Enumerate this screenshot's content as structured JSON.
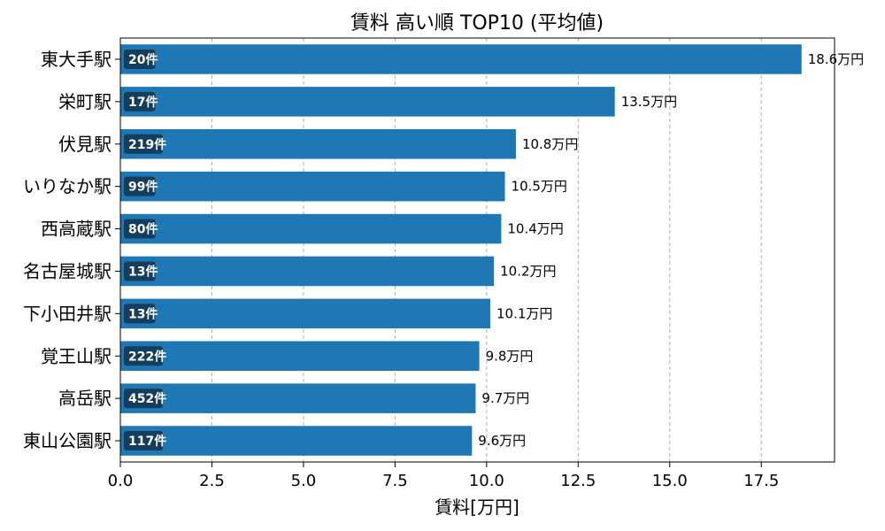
{
  "chart_data": {
    "type": "bar",
    "orientation": "horizontal",
    "title": "賃料 高い順 TOP10 (平均値)",
    "xlabel": "賃料[万円]",
    "ylabel": "",
    "xlim": [
      0,
      19.5
    ],
    "xticks": [
      "0.0",
      "2.5",
      "5.0",
      "7.5",
      "10.0",
      "12.5",
      "15.0",
      "17.5"
    ],
    "xtick_values": [
      0,
      2.5,
      5,
      7.5,
      10,
      12.5,
      15,
      17.5
    ],
    "grid": "x",
    "bar_color": "#1f77b4",
    "badge_color": "#153d5c",
    "categories": [
      "東大手駅",
      "栄町駅",
      "伏見駅",
      "いりなか駅",
      "西高蔵駅",
      "名古屋城駅",
      "下小田井駅",
      "覚王山駅",
      "高岳駅",
      "東山公園駅"
    ],
    "values": [
      18.6,
      13.5,
      10.8,
      10.5,
      10.4,
      10.2,
      10.1,
      9.8,
      9.7,
      9.6
    ],
    "value_labels": [
      "18.6万円",
      "13.5万円",
      "10.8万円",
      "10.5万円",
      "10.4万円",
      "10.2万円",
      "10.1万円",
      "9.8万円",
      "9.7万円",
      "9.6万円"
    ],
    "counts": [
      "20件",
      "17件",
      "219件",
      "99件",
      "80件",
      "13件",
      "13件",
      "222件",
      "452件",
      "117件"
    ]
  }
}
